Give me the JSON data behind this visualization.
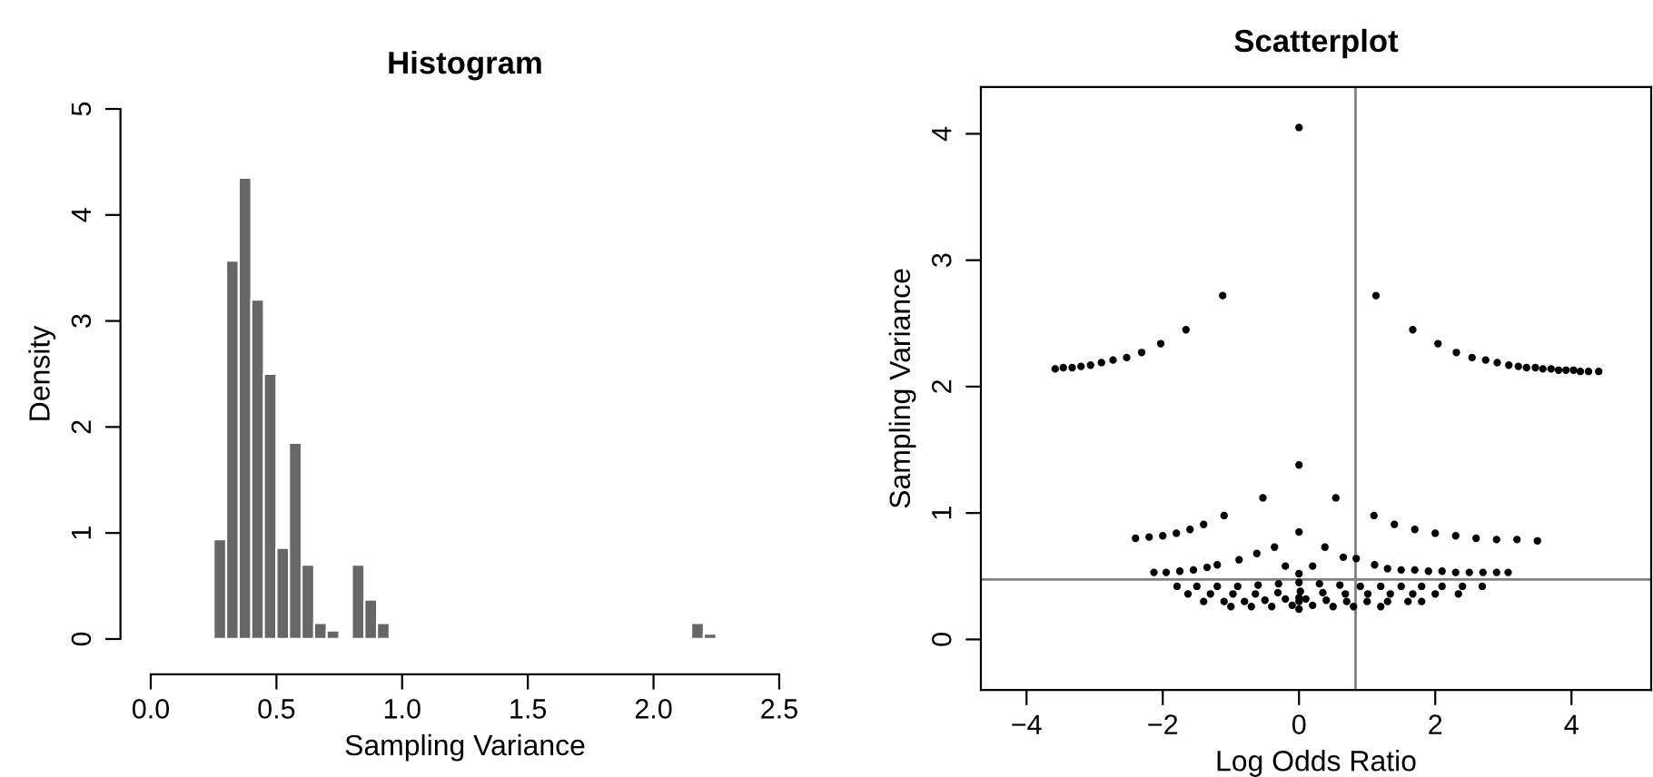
{
  "chart_data": [
    {
      "type": "histogram",
      "title": "Histogram",
      "xlabel": "Sampling Variance",
      "ylabel": "Density",
      "color": "#666666",
      "bins": [
        0.2,
        0.25,
        0.3,
        0.35,
        0.4,
        0.45,
        0.5,
        0.55,
        0.6,
        0.65,
        0.7,
        0.75,
        0.8,
        0.85,
        0.9,
        0.95,
        1.0,
        1.05,
        1.1,
        1.15,
        1.2,
        1.25,
        1.3,
        1.35,
        1.4,
        1.45,
        1.5,
        1.55,
        1.6,
        1.65,
        1.7,
        1.75,
        1.8,
        1.85,
        1.9,
        1.95,
        2.0,
        2.05,
        2.1,
        2.15,
        2.2,
        2.25
      ],
      "values": [
        0.02,
        0.94,
        3.57,
        4.35,
        3.2,
        2.5,
        0.86,
        1.85,
        0.7,
        0.15,
        0.08,
        0,
        0.7,
        0.37,
        0.15,
        0,
        0.02,
        0,
        0,
        0,
        0,
        0,
        0,
        0,
        0,
        0,
        0,
        0,
        0,
        0,
        0,
        0,
        0,
        0,
        0,
        0,
        0,
        0,
        0.02,
        0.15,
        0.05
      ],
      "xlim": [
        0,
        2.5
      ],
      "ylim": [
        0,
        5
      ],
      "xticks": [
        {
          "value": 0,
          "label": "0.0"
        },
        0.5,
        {
          "value": 1,
          "label": "1.0"
        },
        1.5,
        {
          "value": 2,
          "label": "2.0"
        },
        2.5
      ],
      "yticks": [
        0,
        1,
        2,
        3,
        4,
        5
      ],
      "grid": false,
      "legend": false
    },
    {
      "type": "scatter",
      "title": "Scatterplot",
      "xlabel": "Log Odds Ratio",
      "ylabel": "Sampling Variance",
      "marker": "circle",
      "grid": false,
      "legend": false,
      "xlim": [
        -4.67,
        5.17
      ],
      "ylim": [
        -0.4,
        4.37
      ],
      "xticks": [
        {
          "value": -4,
          "label": "−4"
        },
        {
          "value": -2,
          "label": "−2"
        },
        0,
        2,
        4
      ],
      "yticks": [
        0,
        1,
        2,
        3,
        4
      ],
      "ref_lines": [
        {
          "axis": "x",
          "value": 0.83,
          "color": "#808080"
        },
        {
          "axis": "y",
          "value": 0.475,
          "color": "#808080"
        }
      ],
      "series": [
        {
          "color": "#000000",
          "x": [
            0,
            -3.58,
            -3.46,
            -3.33,
            -3.2,
            -3.06,
            -2.9,
            -2.73,
            -2.53,
            -2.31,
            -2.03,
            -1.66,
            -1.12,
            1.13,
            1.67,
            2.04,
            2.31,
            2.54,
            2.74,
            2.91,
            3.08,
            3.22,
            3.34,
            3.47,
            3.58,
            3.7,
            3.81,
            3.92,
            4.03,
            4.13,
            4.25,
            4.4,
            -0.53,
            0,
            0.54,
            -2.4,
            -2.2,
            -2.0,
            -1.8,
            -1.6,
            -1.4,
            -1.1,
            0,
            1.1,
            1.4,
            1.7,
            2.0,
            2.3,
            2.6,
            2.9,
            3.2,
            3.5,
            -2.13,
            -1.95,
            -1.75,
            -1.55,
            -1.35,
            -1.2,
            -0.88,
            -0.62,
            -0.36,
            -0.2,
            0,
            0.2,
            0.38,
            0.65,
            0.84,
            1.11,
            1.3,
            1.5,
            1.7,
            1.9,
            2.1,
            2.3,
            2.5,
            2.7,
            2.9,
            3.07,
            -1.79,
            -1.5,
            -1.2,
            -0.9,
            -0.6,
            -0.3,
            0,
            0.3,
            0.6,
            0.9,
            1.2,
            1.5,
            1.8,
            2.1,
            2.4,
            2.69,
            -1.63,
            -1.3,
            -0.97,
            -0.64,
            -0.31,
            0.02,
            0.35,
            0.68,
            1.01,
            1.34,
            1.67,
            2.0,
            2.34,
            -1.4,
            -1.1,
            -0.8,
            -0.5,
            -0.2,
            0.1,
            0.4,
            0.7,
            1.0,
            1.3,
            1.6,
            1.8,
            -1.0,
            -0.7,
            -0.4,
            -0.1,
            0.2,
            0.5,
            0.8,
            1.2,
            0,
            0,
            0
          ],
          "values": [
            4.05,
            2.14,
            2.15,
            2.15,
            2.16,
            2.17,
            2.19,
            2.21,
            2.23,
            2.27,
            2.34,
            2.45,
            2.72,
            2.72,
            2.45,
            2.34,
            2.27,
            2.23,
            2.21,
            2.19,
            2.17,
            2.16,
            2.15,
            2.15,
            2.14,
            2.14,
            2.13,
            2.13,
            2.13,
            2.12,
            2.12,
            2.12,
            1.12,
            1.38,
            1.12,
            0.8,
            0.81,
            0.82,
            0.84,
            0.87,
            0.91,
            0.98,
            0.85,
            0.98,
            0.91,
            0.87,
            0.84,
            0.82,
            0.8,
            0.79,
            0.79,
            0.78,
            0.53,
            0.53,
            0.54,
            0.55,
            0.57,
            0.59,
            0.63,
            0.68,
            0.73,
            0.58,
            0.52,
            0.58,
            0.73,
            0.65,
            0.64,
            0.59,
            0.56,
            0.55,
            0.55,
            0.54,
            0.54,
            0.53,
            0.53,
            0.53,
            0.53,
            0.53,
            0.42,
            0.42,
            0.42,
            0.42,
            0.43,
            0.44,
            0.45,
            0.44,
            0.43,
            0.42,
            0.42,
            0.42,
            0.42,
            0.42,
            0.42,
            0.42,
            0.36,
            0.36,
            0.36,
            0.36,
            0.37,
            0.38,
            0.37,
            0.36,
            0.36,
            0.36,
            0.36,
            0.36,
            0.36,
            0.3,
            0.3,
            0.3,
            0.31,
            0.32,
            0.32,
            0.31,
            0.3,
            0.3,
            0.3,
            0.3,
            0.3,
            0.26,
            0.26,
            0.26,
            0.27,
            0.27,
            0.26,
            0.26,
            0.26,
            0.3,
            0.33,
            0.24
          ]
        }
      ]
    }
  ]
}
